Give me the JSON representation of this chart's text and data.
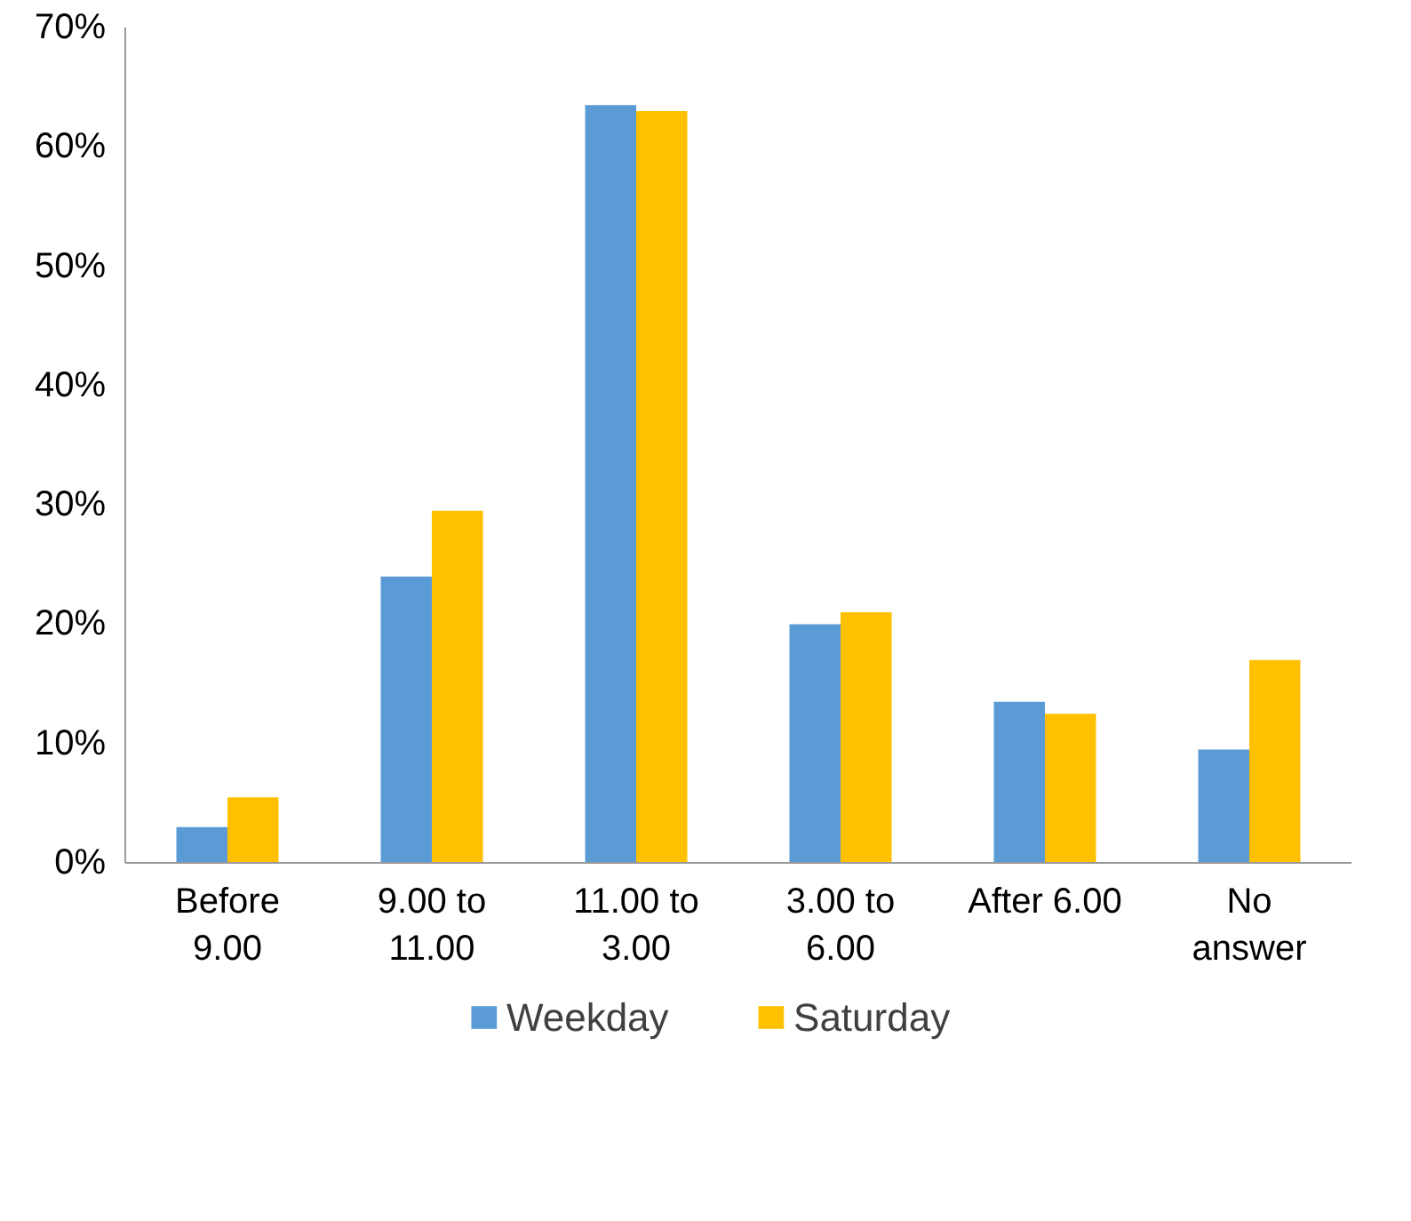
{
  "chart_data": {
    "type": "bar",
    "categories": [
      "Before\n9.00",
      "9.00 to\n11.00",
      "11.00 to\n3.00",
      "3.00 to\n6.00",
      "After 6.00",
      "No\nanswer"
    ],
    "series": [
      {
        "name": "Weekday",
        "color": "#5b9bd5",
        "values": [
          3,
          24,
          63.5,
          20,
          13.5,
          9.5
        ]
      },
      {
        "name": "Saturday",
        "color": "#ffc000",
        "values": [
          5.5,
          29.5,
          63,
          21,
          12.5,
          17
        ]
      }
    ],
    "ylim": [
      0,
      70
    ],
    "yticks": [
      {
        "value": 0,
        "label": "0%"
      },
      {
        "value": 10,
        "label": "10%"
      },
      {
        "value": 20,
        "label": "20%"
      },
      {
        "value": 30,
        "label": "30%"
      },
      {
        "value": 40,
        "label": "40%"
      },
      {
        "value": 50,
        "label": "50%"
      },
      {
        "value": 60,
        "label": "60%"
      },
      {
        "value": 70,
        "label": "70%"
      }
    ],
    "grid": false,
    "legend": "bottom"
  }
}
